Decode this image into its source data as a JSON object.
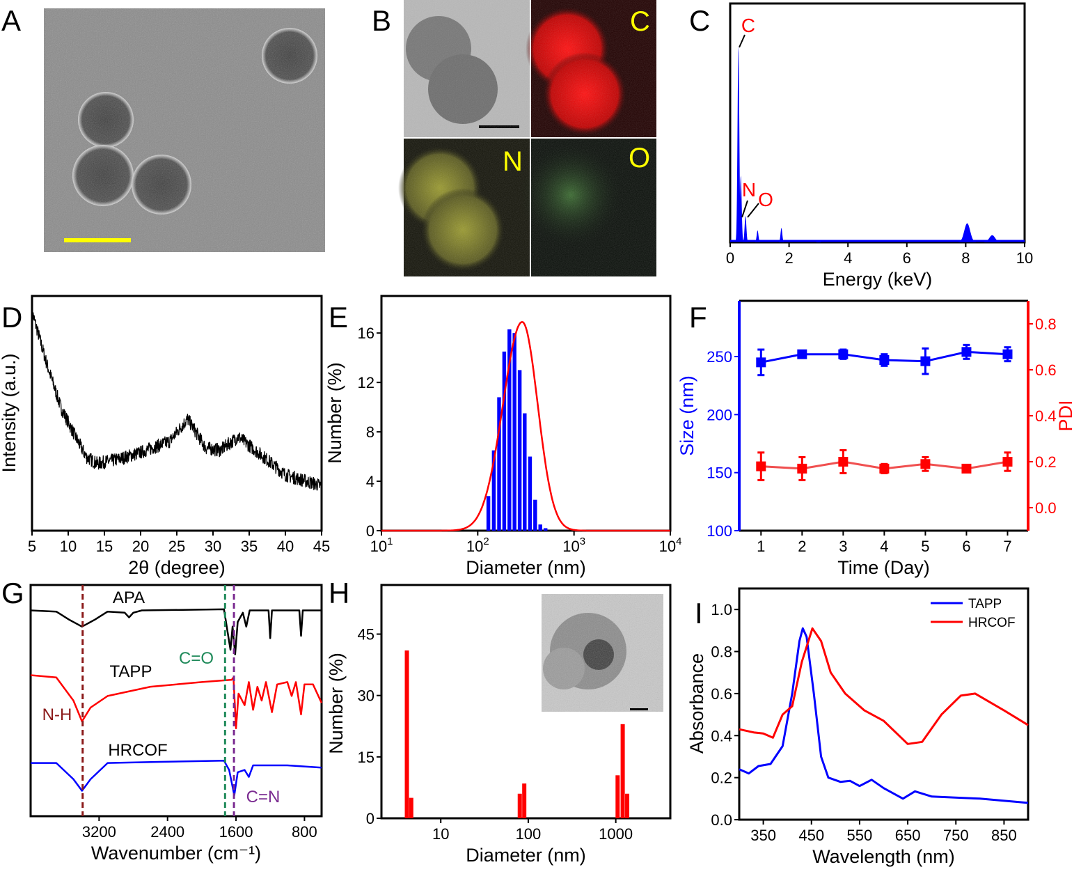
{
  "panel_labels": [
    "A",
    "B",
    "C",
    "D",
    "E",
    "F",
    "G",
    "H",
    "I"
  ],
  "colors": {
    "blue": "#0000ff",
    "red": "#ff0000",
    "black": "#000000",
    "yellow": "#ffff00",
    "nh": "#8b1a1a",
    "co": "#1f8a5a",
    "cn": "#7a2a90",
    "pdi_line": "#f05050"
  },
  "panel_B": {
    "element_labels": [
      "C",
      "N",
      "O"
    ]
  },
  "chart_data": [
    {
      "id": "C",
      "type": "area",
      "xlabel": "Energy (keV)",
      "ylabel": "",
      "xlim": [
        0,
        10
      ],
      "ylim": [
        0,
        1
      ],
      "xticks": [
        0,
        2,
        4,
        6,
        8,
        10
      ],
      "peaks": [
        {
          "x": 0.28,
          "y": 0.82
        },
        {
          "x": 0.36,
          "y": 0.28
        },
        {
          "x": 0.52,
          "y": 0.11
        },
        {
          "x": 0.93,
          "y": 0.05
        },
        {
          "x": 1.74,
          "y": 0.06
        },
        {
          "x": 8.05,
          "y": 0.08
        },
        {
          "x": 8.9,
          "y": 0.03
        },
        {
          "x": 3.0,
          "y": 0.01
        }
      ],
      "annotations": [
        {
          "text": "C",
          "x": 0.28
        },
        {
          "text": "N",
          "x": 0.39
        },
        {
          "text": "O",
          "x": 0.52
        }
      ]
    },
    {
      "id": "D",
      "type": "line",
      "xlabel": "2θ (degree)",
      "ylabel": "Intensity (a.u.)",
      "xlim": [
        5,
        45
      ],
      "ylim": [
        0,
        1.05
      ],
      "xticks": [
        5,
        10,
        15,
        20,
        25,
        30,
        35,
        40,
        45
      ],
      "noise": 0.03,
      "x": [
        5,
        7,
        9,
        11,
        12.5,
        14,
        17,
        20,
        24,
        26.5,
        29,
        31,
        33.5,
        37,
        40,
        45
      ],
      "y": [
        0.98,
        0.75,
        0.55,
        0.42,
        0.33,
        0.3,
        0.32,
        0.35,
        0.4,
        0.5,
        0.37,
        0.36,
        0.42,
        0.33,
        0.25,
        0.2
      ]
    },
    {
      "id": "E",
      "type": "bar",
      "xlabel": "Diameter (nm)",
      "ylabel": "Number (%)",
      "xscale": "log",
      "xlim": [
        10,
        10000
      ],
      "ylim": [
        0,
        19
      ],
      "xticks": [
        {
          "base": "10",
          "exp": "1",
          "v": 10
        },
        {
          "base": "10",
          "exp": "2",
          "v": 100
        },
        {
          "base": "10",
          "exp": "3",
          "v": 1000
        },
        {
          "base": "10",
          "exp": "4",
          "v": 10000
        }
      ],
      "yticks": [
        0,
        4,
        8,
        12,
        16
      ],
      "bars": {
        "x": [
          130,
          148,
          168,
          190,
          215,
          243,
          275,
          310,
          352,
          398,
          450,
          510,
          580
        ],
        "values": [
          2.8,
          6.5,
          10.8,
          14.5,
          16.3,
          16.0,
          13.0,
          9.5,
          6.0,
          2.5,
          0.5,
          0.2,
          0.0
        ]
      },
      "fit": {
        "peak": 290,
        "height": 16.9,
        "sigma_log": 0.16
      }
    },
    {
      "id": "F",
      "type": "line",
      "xlabel": "Time (Day)",
      "ylabel": "Size (nm)",
      "ylabel_right": "PDI",
      "xlim": [
        0.47,
        7.5
      ],
      "ylim": [
        100,
        298
      ],
      "ylim_right": [
        -0.1,
        0.9
      ],
      "xticks": [
        1,
        2,
        3,
        4,
        5,
        6,
        7
      ],
      "yticks": [
        100,
        150,
        200,
        250
      ],
      "yticks_right": [
        "0.0",
        "0.2",
        "0.4",
        "0.6",
        "0.8"
      ],
      "series": [
        {
          "name": "Size",
          "axis": "left",
          "x": [
            1,
            2,
            3,
            4,
            5,
            6,
            7
          ],
          "values": [
            245,
            252,
            252,
            247,
            246,
            254,
            252
          ],
          "err": [
            11,
            3,
            4,
            5,
            11,
            6,
            6
          ]
        },
        {
          "name": "PDI",
          "axis": "right",
          "x": [
            1,
            2,
            3,
            4,
            5,
            6,
            7
          ],
          "values": [
            0.18,
            0.17,
            0.2,
            0.17,
            0.19,
            0.17,
            0.2
          ],
          "err": [
            0.06,
            0.05,
            0.05,
            0.02,
            0.03,
            0.01,
            0.04
          ]
        }
      ]
    },
    {
      "id": "G",
      "type": "line",
      "xlabel": "Wavenumber (cm⁻¹)",
      "ylabel": "",
      "xlim": [
        4000,
        600
      ],
      "ylim": [
        0,
        10
      ],
      "xticks": [
        3200,
        2400,
        1600,
        800
      ],
      "series": [
        {
          "name": "APA",
          "points": [
            [
              4000,
              8.9
            ],
            [
              3700,
              8.85
            ],
            [
              3550,
              8.5
            ],
            [
              3400,
              8.2
            ],
            [
              3250,
              8.5
            ],
            [
              3100,
              8.85
            ],
            [
              2900,
              8.8
            ],
            [
              2850,
              8.6
            ],
            [
              2800,
              8.8
            ],
            [
              2700,
              8.9
            ],
            [
              1740,
              8.95
            ],
            [
              1700,
              8.0
            ],
            [
              1665,
              7.2
            ],
            [
              1640,
              8.2
            ],
            [
              1610,
              7.0
            ],
            [
              1580,
              8.4
            ],
            [
              1520,
              8.8
            ],
            [
              1480,
              8.2
            ],
            [
              1440,
              8.9
            ],
            [
              1220,
              8.9
            ],
            [
              1200,
              7.7
            ],
            [
              1180,
              8.9
            ],
            [
              860,
              8.9
            ],
            [
              840,
              7.8
            ],
            [
              820,
              8.9
            ],
            [
              600,
              8.9
            ]
          ]
        },
        {
          "name": "TAPP",
          "points": [
            [
              4000,
              6.1
            ],
            [
              3700,
              6.0
            ],
            [
              3500,
              5.0
            ],
            [
              3400,
              4.1
            ],
            [
              3300,
              4.7
            ],
            [
              3100,
              5.2
            ],
            [
              2600,
              5.6
            ],
            [
              2000,
              5.8
            ],
            [
              1650,
              5.9
            ],
            [
              1630,
              6.0
            ],
            [
              1600,
              3.8
            ],
            [
              1570,
              5.3
            ],
            [
              1500,
              4.8
            ],
            [
              1450,
              5.8
            ],
            [
              1400,
              4.6
            ],
            [
              1350,
              5.6
            ],
            [
              1300,
              5.0
            ],
            [
              1250,
              5.8
            ],
            [
              1180,
              4.5
            ],
            [
              1120,
              5.7
            ],
            [
              1000,
              5.8
            ],
            [
              950,
              5.2
            ],
            [
              900,
              5.8
            ],
            [
              840,
              4.4
            ],
            [
              800,
              5.7
            ],
            [
              700,
              5.7
            ],
            [
              600,
              4.9
            ]
          ]
        },
        {
          "name": "HRCOF",
          "points": [
            [
              4000,
              2.3
            ],
            [
              3700,
              2.3
            ],
            [
              3500,
              1.6
            ],
            [
              3400,
              1.1
            ],
            [
              3300,
              1.6
            ],
            [
              3100,
              2.3
            ],
            [
              2500,
              2.35
            ],
            [
              1740,
              2.4
            ],
            [
              1680,
              2.0
            ],
            [
              1620,
              0.9
            ],
            [
              1580,
              1.9
            ],
            [
              1500,
              2.0
            ],
            [
              1450,
              1.7
            ],
            [
              1400,
              2.2
            ],
            [
              1000,
              2.2
            ],
            [
              600,
              2.1
            ]
          ]
        }
      ],
      "markers": [
        {
          "text": "N-H",
          "x": 3392
        },
        {
          "text": "C=O",
          "x": 1728
        },
        {
          "text": "C=N",
          "x": 1624
        }
      ]
    },
    {
      "id": "H",
      "type": "bar",
      "xlabel": "Diameter (nm)",
      "ylabel": "Number (%)",
      "xscale": "log",
      "xlim": [
        2.1,
        4200
      ],
      "ylim": [
        0,
        57
      ],
      "xticks": [
        10,
        100,
        1000
      ],
      "yticks": [
        0,
        15,
        30,
        45
      ],
      "bars": {
        "x": [
          4.1,
          4.6,
          80,
          90,
          1050,
          1200,
          1350
        ],
        "values": [
          41,
          5,
          6,
          8.5,
          10.5,
          23,
          6
        ]
      }
    },
    {
      "id": "I",
      "type": "line",
      "xlabel": "Wavelength (nm)",
      "ylabel": "Absorbance",
      "xlim": [
        300,
        900
      ],
      "ylim": [
        0,
        1.1
      ],
      "xticks": [
        350,
        450,
        550,
        650,
        750,
        850
      ],
      "yticks": [
        "0.0",
        "0.2",
        "0.4",
        "0.6",
        "0.8",
        "1.0"
      ],
      "legend": "top-right",
      "series": [
        {
          "name": "TAPP",
          "points": [
            [
              300,
              0.24
            ],
            [
              320,
              0.22
            ],
            [
              340,
              0.255
            ],
            [
              365,
              0.265
            ],
            [
              390,
              0.35
            ],
            [
              410,
              0.6
            ],
            [
              425,
              0.85
            ],
            [
              432,
              0.91
            ],
            [
              440,
              0.87
            ],
            [
              455,
              0.6
            ],
            [
              470,
              0.3
            ],
            [
              485,
              0.2
            ],
            [
              510,
              0.18
            ],
            [
              530,
              0.185
            ],
            [
              550,
              0.16
            ],
            [
              575,
              0.19
            ],
            [
              600,
              0.15
            ],
            [
              640,
              0.1
            ],
            [
              665,
              0.135
            ],
            [
              700,
              0.11
            ],
            [
              800,
              0.1
            ],
            [
              900,
              0.08
            ]
          ]
        },
        {
          "name": "HRCOF",
          "points": [
            [
              300,
              0.43
            ],
            [
              330,
              0.415
            ],
            [
              350,
              0.41
            ],
            [
              370,
              0.39
            ],
            [
              390,
              0.5
            ],
            [
              410,
              0.54
            ],
            [
              430,
              0.75
            ],
            [
              452,
              0.91
            ],
            [
              470,
              0.85
            ],
            [
              490,
              0.7
            ],
            [
              520,
              0.6
            ],
            [
              560,
              0.52
            ],
            [
              600,
              0.47
            ],
            [
              650,
              0.36
            ],
            [
              680,
              0.37
            ],
            [
              720,
              0.5
            ],
            [
              760,
              0.59
            ],
            [
              790,
              0.6
            ],
            [
              850,
              0.52
            ],
            [
              900,
              0.45
            ]
          ]
        }
      ]
    }
  ]
}
